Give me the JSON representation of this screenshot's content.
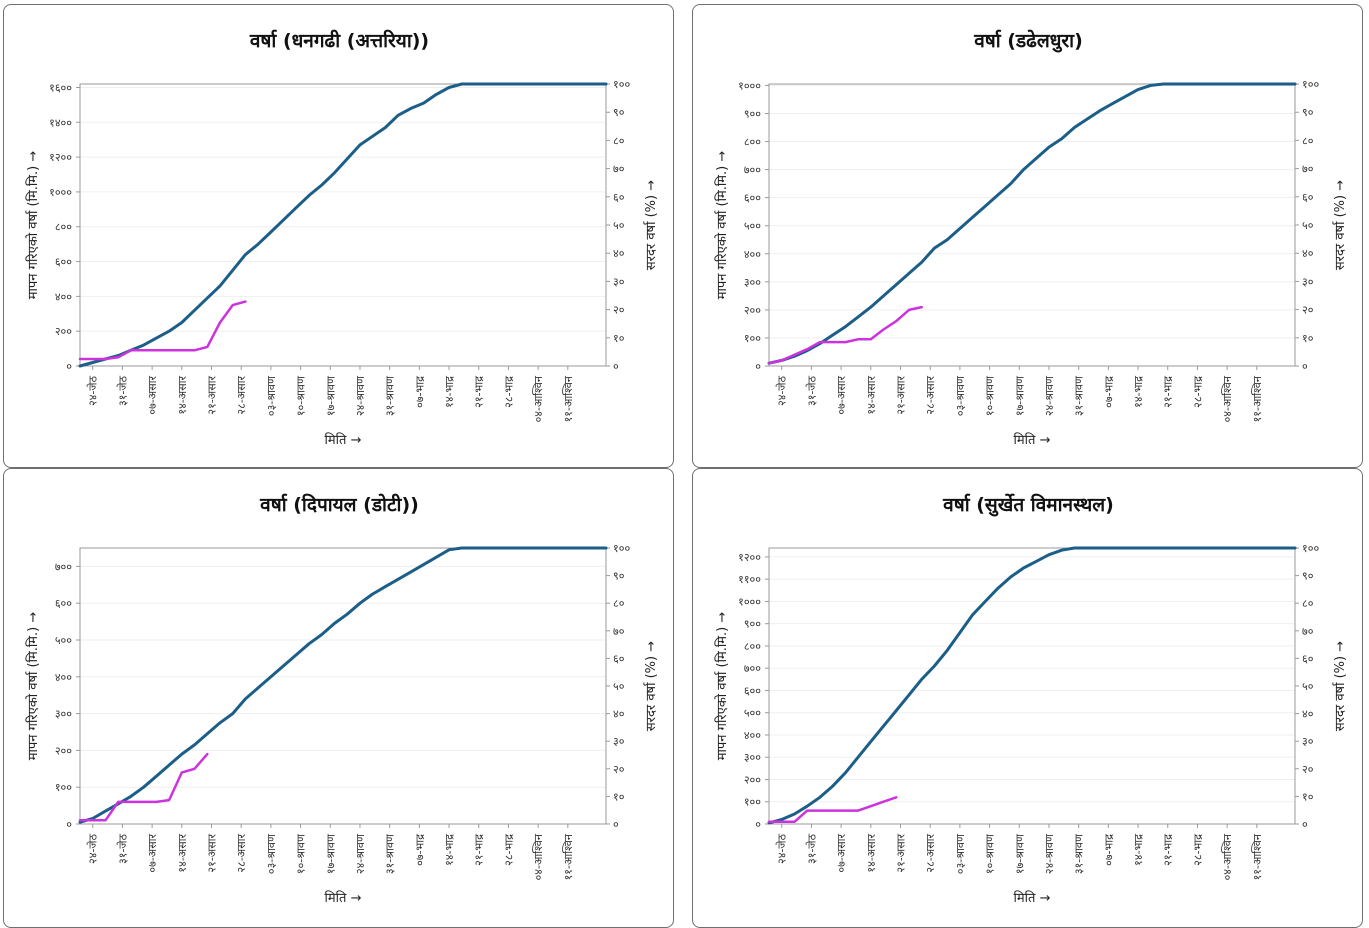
{
  "colors": {
    "normal": "#1b5e88",
    "current": "#cc33dd",
    "grid": "#efefef",
    "frame": "#9a9a9a"
  },
  "x_ticks": [
    "२४-जेठ",
    "३१-जेठ",
    "०७-असार",
    "१४-असार",
    "२१-असार",
    "२८-असार",
    "०३-श्रावण",
    "१०-श्रावण",
    "१७-श्रावण",
    "२४-श्रावण",
    "३१-श्रावण",
    "०७-भाद्र",
    "१४-भाद्र",
    "२१-भाद्र",
    "२८-भाद्र",
    "०४-आश्विन",
    "११-आश्विन"
  ],
  "xlabel": "मिति →",
  "ylabel_left": "मापन गरिएको वर्षा (मि.मि.) →",
  "ylabel_right": "सरदर वर्षा (%) →",
  "chart_data": [
    {
      "type": "line",
      "title": "वर्षा (धनगढी (अत्तरिया))",
      "ylim": [
        0,
        1620
      ],
      "y_ticks": [
        0,
        200,
        400,
        600,
        800,
        1000,
        1200,
        1400,
        1600
      ],
      "y_tick_labels": [
        "०",
        "२००",
        "४००",
        "६००",
        "८००",
        "१०००",
        "१२००",
        "१४००",
        "१६००"
      ],
      "y2_ticks": [
        0,
        10,
        20,
        30,
        40,
        50,
        60,
        70,
        80,
        90,
        100
      ],
      "y2_tick_labels": [
        "०",
        "१०",
        "२०",
        "३०",
        "४०",
        "५०",
        "६०",
        "७०",
        "८०",
        "९०",
        "१००"
      ],
      "x_days": [
        -3,
        0,
        3,
        6,
        9,
        12,
        15,
        18,
        21,
        24,
        27,
        30,
        33,
        36,
        39,
        42,
        45,
        48,
        51,
        54,
        57,
        60,
        63,
        66,
        69,
        72,
        75,
        78,
        81,
        84,
        87,
        90,
        93,
        96,
        99,
        102,
        105,
        108,
        111,
        115,
        118,
        121
      ],
      "series": [
        {
          "values": [
            0,
            20,
            40,
            60,
            90,
            120,
            160,
            200,
            250,
            320,
            390,
            460,
            550,
            640,
            700,
            770,
            840,
            910,
            980,
            1040,
            1110,
            1190,
            1270,
            1320,
            1370,
            1440,
            1480,
            1510,
            1560,
            1600,
            1620,
            1620,
            1620,
            1620,
            1620,
            1620,
            1620,
            1620,
            1620,
            1620,
            1620,
            1620
          ]
        },
        {
          "values": [
            40,
            40,
            40,
            50,
            90,
            90,
            90,
            90,
            90,
            90,
            110,
            250,
            350,
            370
          ]
        }
      ]
    },
    {
      "type": "line",
      "title": "वर्षा (डढेलधुरा)",
      "ylim": [
        0,
        1005
      ],
      "y_ticks": [
        0,
        100,
        200,
        300,
        400,
        500,
        600,
        700,
        800,
        900,
        1000
      ],
      "y_tick_labels": [
        "०",
        "१००",
        "२००",
        "३००",
        "४००",
        "५००",
        "६००",
        "७००",
        "८००",
        "९००",
        "१०००"
      ],
      "y2_ticks": [
        0,
        10,
        20,
        30,
        40,
        50,
        60,
        70,
        80,
        90,
        100
      ],
      "y2_tick_labels": [
        "०",
        "१०",
        "२०",
        "३०",
        "४०",
        "५०",
        "६०",
        "७०",
        "८०",
        "९०",
        "१००"
      ],
      "x_days": [
        -3,
        0,
        3,
        6,
        9,
        12,
        15,
        18,
        21,
        24,
        27,
        30,
        33,
        36,
        39,
        42,
        45,
        48,
        51,
        54,
        57,
        60,
        63,
        66,
        69,
        72,
        75,
        78,
        81,
        84,
        87,
        90,
        93,
        96,
        99,
        102,
        105,
        108,
        111,
        115,
        118,
        121
      ],
      "series": [
        {
          "values": [
            10,
            20,
            35,
            55,
            80,
            110,
            140,
            175,
            210,
            250,
            290,
            330,
            370,
            420,
            450,
            490,
            530,
            570,
            610,
            650,
            700,
            740,
            780,
            810,
            850,
            880,
            910,
            935,
            960,
            985,
            1000,
            1005,
            1005,
            1005,
            1005,
            1005,
            1005,
            1005,
            1005,
            1005,
            1005,
            1005
          ]
        },
        {
          "values": [
            10,
            20,
            40,
            60,
            85,
            85,
            85,
            95,
            95,
            130,
            160,
            200,
            210
          ]
        }
      ]
    },
    {
      "type": "line",
      "title": "वर्षा (दिपायल (डोटी))",
      "ylim": [
        0,
        750
      ],
      "y_ticks": [
        0,
        100,
        200,
        300,
        400,
        500,
        600,
        700
      ],
      "y_tick_labels": [
        "०",
        "१००",
        "२००",
        "३००",
        "४००",
        "५००",
        "६००",
        "७००"
      ],
      "y2_ticks": [
        0,
        10,
        20,
        30,
        40,
        50,
        60,
        70,
        80,
        90,
        100
      ],
      "y2_tick_labels": [
        "०",
        "१०",
        "२०",
        "३०",
        "४०",
        "५०",
        "६०",
        "७०",
        "८०",
        "९०",
        "१००"
      ],
      "x_days": [
        -3,
        0,
        3,
        6,
        9,
        12,
        15,
        18,
        21,
        24,
        27,
        30,
        33,
        36,
        39,
        42,
        45,
        48,
        51,
        54,
        57,
        60,
        63,
        66,
        69,
        72,
        75,
        78,
        81,
        84,
        87,
        90,
        93,
        96,
        99,
        102,
        105,
        108,
        111,
        115,
        118,
        121
      ],
      "series": [
        {
          "values": [
            5,
            15,
            35,
            55,
            75,
            100,
            130,
            160,
            190,
            215,
            245,
            275,
            300,
            340,
            370,
            400,
            430,
            460,
            490,
            515,
            545,
            570,
            600,
            625,
            645,
            665,
            685,
            705,
            725,
            745,
            750,
            750,
            750,
            750,
            750,
            750,
            750,
            750,
            750,
            750,
            750,
            750
          ]
        },
        {
          "values": [
            10,
            10,
            10,
            60,
            60,
            60,
            60,
            65,
            140,
            150,
            190
          ]
        }
      ]
    },
    {
      "type": "line",
      "title": "वर्षा (सुर्खेत विमानस्थल)",
      "ylim": [
        0,
        1240
      ],
      "y_ticks": [
        0,
        100,
        200,
        300,
        400,
        500,
        600,
        700,
        800,
        900,
        1000,
        1100,
        1200
      ],
      "y_tick_labels": [
        "०",
        "१००",
        "२००",
        "३००",
        "४००",
        "५००",
        "६००",
        "७००",
        "८००",
        "९००",
        "१०००",
        "११००",
        "१२००"
      ],
      "y2_ticks": [
        0,
        10,
        20,
        30,
        40,
        50,
        60,
        70,
        80,
        90,
        100
      ],
      "y2_tick_labels": [
        "०",
        "१०",
        "२०",
        "३०",
        "४०",
        "५०",
        "६०",
        "७०",
        "८०",
        "९०",
        "१००"
      ],
      "x_days": [
        -3,
        0,
        3,
        6,
        9,
        12,
        15,
        18,
        21,
        24,
        27,
        30,
        33,
        36,
        39,
        42,
        45,
        48,
        51,
        54,
        57,
        60,
        63,
        66,
        69,
        72,
        75,
        78,
        81,
        84,
        87,
        90,
        93,
        96,
        99,
        102,
        105,
        108,
        111,
        115,
        118,
        121
      ],
      "series": [
        {
          "values": [
            5,
            20,
            45,
            80,
            120,
            170,
            230,
            300,
            370,
            440,
            510,
            580,
            650,
            710,
            780,
            860,
            940,
            1000,
            1060,
            1110,
            1150,
            1180,
            1210,
            1230,
            1240,
            1240,
            1240,
            1240,
            1240,
            1240,
            1240,
            1240,
            1240,
            1240,
            1240,
            1240,
            1240,
            1240,
            1240,
            1240,
            1240,
            1240
          ]
        },
        {
          "values": [
            10,
            10,
            10,
            60,
            60,
            60,
            60,
            60,
            80,
            100,
            120
          ]
        }
      ]
    }
  ]
}
